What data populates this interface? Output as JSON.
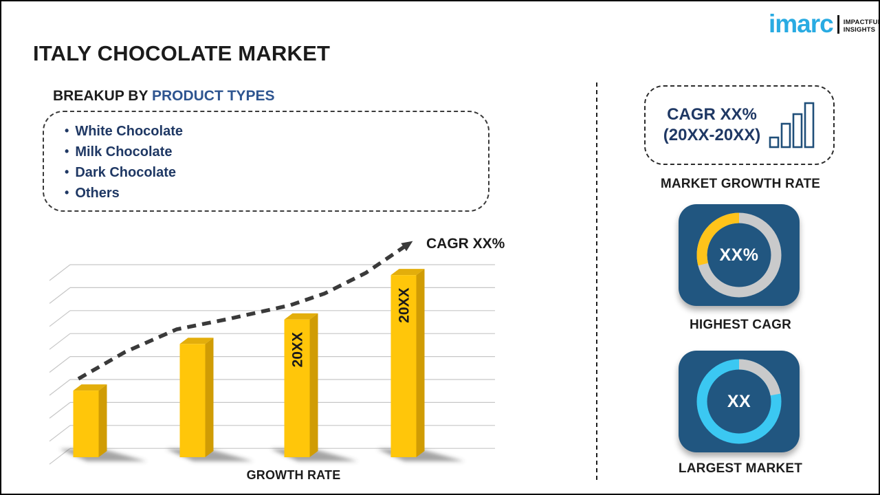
{
  "page": {
    "title": "ITALY CHOCOLATE MARKET"
  },
  "logo": {
    "brand": "imarc",
    "tagline": [
      "IMPACTFUL",
      "INSIGHTS"
    ],
    "brand_color": "#29ABE2"
  },
  "breakup": {
    "label_prefix": "BREAKUP BY ",
    "label_highlight": "PRODUCT TYPES",
    "items": [
      "White Chocolate",
      "Milk Chocolate",
      "Dark Chocolate",
      "Others"
    ]
  },
  "chart_data": {
    "type": "bar",
    "title": "",
    "xlabel": "GROWTH RATE",
    "ylabel": "",
    "categories": [
      "",
      "",
      "20XX",
      "20XX"
    ],
    "values": [
      30,
      51,
      62,
      82
    ],
    "value_note": "placeholder infographic chart, no numeric axis shown; values are relative bar heights (0-100)",
    "bar_labels": [
      "",
      "",
      "20XX",
      "20XX"
    ],
    "trend_label": "CAGR XX%",
    "trend_style": "dashed-arrow",
    "gridline_count": 9,
    "grid": true,
    "legend": false,
    "colors": {
      "bar_front": "#FFC60A",
      "bar_top": "#E3AE0B",
      "bar_side": "#D09C04",
      "trend": "#3A3A3A",
      "gridline": "#C6C6C6",
      "shadow": "#4A4A4A"
    },
    "trend_points": [
      [
        82,
        214
      ],
      [
        150,
        175
      ],
      [
        225,
        142
      ],
      [
        300,
        127
      ],
      [
        390,
        107
      ],
      [
        440,
        90
      ],
      [
        500,
        60
      ],
      [
        556,
        22
      ]
    ]
  },
  "sidebar": {
    "growth_box": {
      "line1": "CAGR XX%",
      "line2": "(20XX-20XX)",
      "icon": "bar-chart-icon",
      "caption": "MARKET GROWTH RATE"
    },
    "highest_cagr": {
      "value": "XX%",
      "caption": "HIGHEST CAGR",
      "chart": {
        "type": "donut",
        "arc_percent": 29,
        "arc_direction": "ccw",
        "arc_color": "#FFC31A",
        "ring_color": "#C9CACB"
      },
      "tile_color": "#215680"
    },
    "largest_market": {
      "value": "XX",
      "caption": "LARGEST MARKET",
      "chart": {
        "type": "donut",
        "arc_percent": 22,
        "arc_direction": "cw",
        "arc_color": "#C9CACB",
        "ring_color": "#3BC8F2"
      },
      "tile_color": "#215680"
    }
  },
  "colors": {
    "accent_navy": "#1F3864",
    "heading_blue": "#2E5590",
    "brand_cyan": "#29ABE2",
    "tile_blue": "#215680",
    "bar_yellow": "#FFC60A",
    "donut_cyan": "#3BC8F2",
    "donut_gray": "#C9CACB"
  }
}
